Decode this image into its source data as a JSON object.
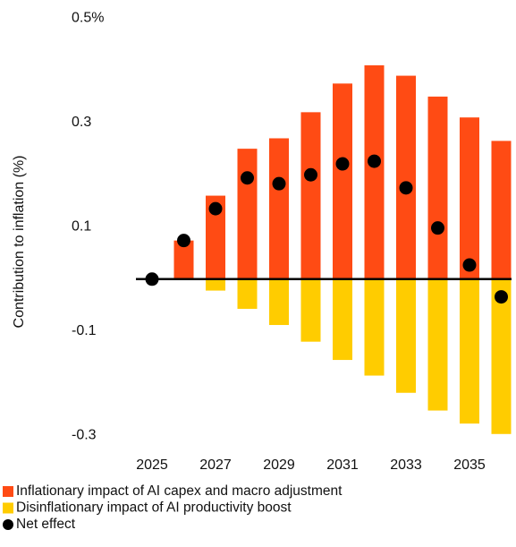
{
  "chart_data": {
    "type": "bar",
    "y_label": "Contribution to inflation (%)",
    "categories": [
      2025,
      2026,
      2027,
      2028,
      2029,
      2030,
      2031,
      2032,
      2033,
      2034,
      2035,
      2036
    ],
    "xticks": [
      2025,
      2027,
      2029,
      2031,
      2033,
      2035
    ],
    "ylim": [
      -0.33,
      0.5
    ],
    "yticks": [
      {
        "value": 0.5,
        "label": "0.5%"
      },
      0.3,
      0.1,
      -0.1,
      -0.3
    ],
    "series": [
      {
        "name": "Inflationary impact of AI capex and macro adjustment",
        "color": "#ff4b14",
        "kind": "bar",
        "values": [
          0,
          0.074,
          0.16,
          0.25,
          0.27,
          0.32,
          0.375,
          0.41,
          0.39,
          0.35,
          0.31,
          0.265
        ]
      },
      {
        "name": "Disinflationary impact of AI productivity boost",
        "color": "#ffcc00",
        "kind": "bar",
        "values": [
          0,
          0,
          -0.022,
          -0.057,
          -0.088,
          -0.12,
          -0.155,
          -0.185,
          -0.218,
          -0.252,
          -0.277,
          -0.297
        ]
      },
      {
        "name": "Net effect",
        "color": "#000000",
        "kind": "scatter",
        "values": [
          0,
          0.074,
          0.135,
          0.194,
          0.183,
          0.2,
          0.221,
          0.226,
          0.175,
          0.098,
          0.027,
          -0.034
        ]
      }
    ]
  }
}
